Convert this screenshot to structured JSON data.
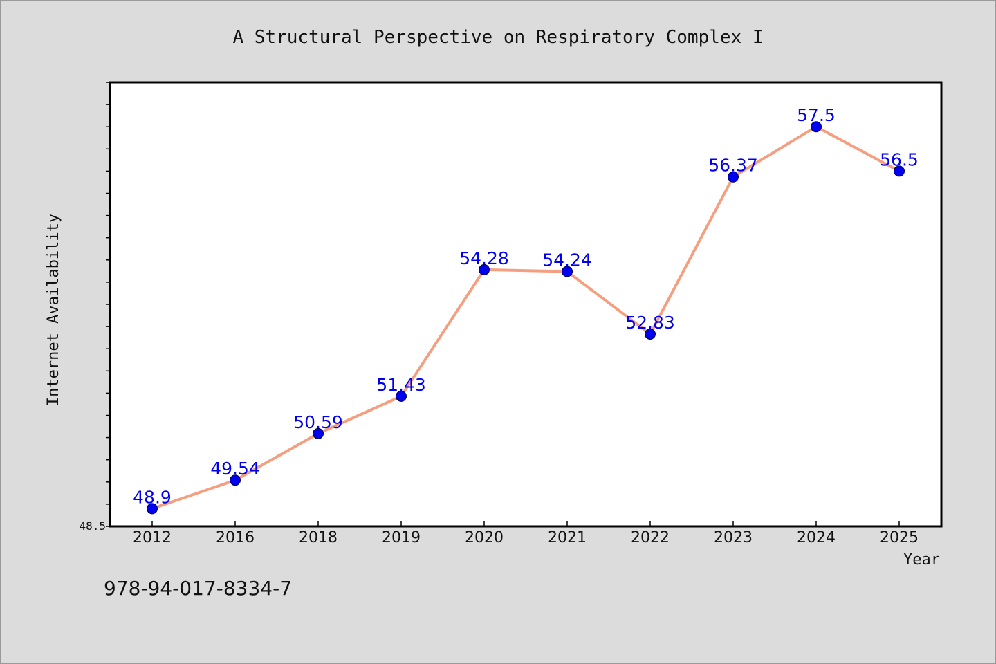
{
  "chart_data": {
    "type": "line",
    "title": "A Structural Perspective on Respiratory Complex I",
    "xlabel": "Year",
    "ylabel": "Internet Availability",
    "categories": [
      "2012",
      "2016",
      "2018",
      "2019",
      "2020",
      "2021",
      "2022",
      "2023",
      "2024",
      "2025"
    ],
    "series": [
      {
        "values": [
          48.9,
          49.54,
          50.59,
          51.43,
          54.28,
          54.24,
          52.83,
          56.37,
          57.5,
          56.5
        ]
      }
    ],
    "data_labels": [
      "48.9",
      "49.54",
      "50.59",
      "51.43",
      "54.28",
      "54.24",
      "52.83",
      "56.37",
      "57.5",
      "56.5"
    ],
    "ylim": [
      48.5,
      58.5
    ],
    "ytick_labels": [
      "48.5"
    ],
    "grid": false,
    "legend": "none",
    "colors": {
      "line": "#f4a080",
      "marker": "#0000ee",
      "label": "#0000ee",
      "background": "#dcdcdc",
      "plot_background": "#ffffff"
    }
  },
  "footer": {
    "isbn": "978-94-017-8334-7"
  }
}
